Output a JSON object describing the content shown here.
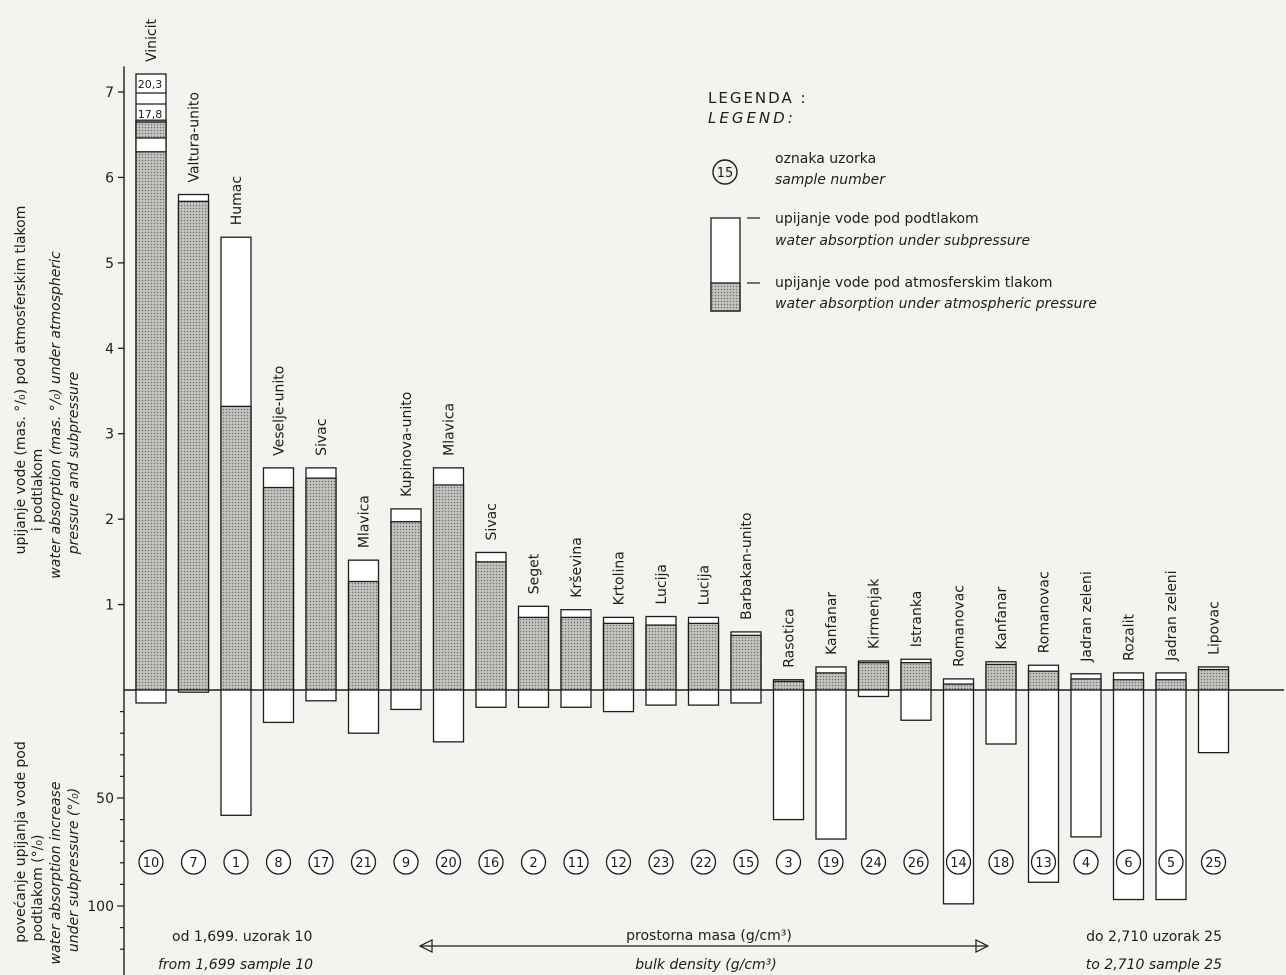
{
  "chart_data": {
    "type": "bar",
    "upper_axis": {
      "ylabel_lines": [
        "upijanje vode (mas. °/₀) pod atmosferskim tlakom",
        "i podtlakom"
      ],
      "ylabel_en_lines": [
        "water absorption (mas. °/₀) under atmospheric",
        "pressure and subpressure"
      ],
      "ylim": [
        0,
        7.3
      ],
      "ticks": [
        "1",
        "2",
        "3",
        "4",
        "5",
        "6",
        "7"
      ]
    },
    "lower_axis": {
      "ylabel_lines": [
        "povećanje upijanja vode pod",
        "podtlakom (°/₀)"
      ],
      "ylabel_en_lines": [
        "water absorption increase",
        "under subpressure (°/₀)"
      ],
      "ylim": [
        0,
        107
      ],
      "ticks": [
        "50",
        "100"
      ]
    },
    "samples": [
      {
        "name": "Vinicit",
        "number": "10",
        "atmospheric": 6.3,
        "subpressure": 6.65,
        "increase": 6
      },
      {
        "name": "Valtura-unito",
        "number": "7",
        "atmospheric": 5.72,
        "subpressure": 5.8,
        "increase": 1
      },
      {
        "name": "Humac",
        "number": "1",
        "atmospheric": 3.32,
        "subpressure": 5.3,
        "increase": 58
      },
      {
        "name": "Veselje-unito",
        "number": "8",
        "atmospheric": 2.37,
        "subpressure": 2.6,
        "increase": 15
      },
      {
        "name": "Sivac",
        "number": "17",
        "atmospheric": 2.48,
        "subpressure": 2.6,
        "increase": 5
      },
      {
        "name": "Mlavica",
        "number": "21",
        "atmospheric": 1.27,
        "subpressure": 1.52,
        "increase": 20
      },
      {
        "name": "Kupinova-unito",
        "number": "9",
        "atmospheric": 1.97,
        "subpressure": 2.12,
        "increase": 9
      },
      {
        "name": "Mlavica",
        "number": "20",
        "atmospheric": 2.4,
        "subpressure": 2.6,
        "increase": 24
      },
      {
        "name": "Sivac",
        "number": "16",
        "atmospheric": 1.5,
        "subpressure": 1.61,
        "increase": 8
      },
      {
        "name": "Seget",
        "number": "2",
        "atmospheric": 0.85,
        "subpressure": 0.98,
        "increase": 8
      },
      {
        "name": "Krševina",
        "number": "11",
        "atmospheric": 0.85,
        "subpressure": 0.94,
        "increase": 8
      },
      {
        "name": "Krtolina",
        "number": "12",
        "atmospheric": 0.78,
        "subpressure": 0.85,
        "increase": 10
      },
      {
        "name": "Lucija",
        "number": "23",
        "atmospheric": 0.76,
        "subpressure": 0.86,
        "increase": 7
      },
      {
        "name": "Lucija",
        "number": "22",
        "atmospheric": 0.78,
        "subpressure": 0.85,
        "increase": 7
      },
      {
        "name": "Barbakan-unito",
        "number": "15",
        "atmospheric": 0.64,
        "subpressure": 0.68,
        "increase": 6
      },
      {
        "name": "Rasotica",
        "number": "3",
        "atmospheric": 0.1,
        "subpressure": 0.12,
        "increase": 60
      },
      {
        "name": "Kanfanar",
        "number": "19",
        "atmospheric": 0.2,
        "subpressure": 0.27,
        "increase": 69
      },
      {
        "name": "Kirmenjak",
        "number": "24",
        "atmospheric": 0.32,
        "subpressure": 0.34,
        "increase": 3
      },
      {
        "name": "Istranka",
        "number": "26",
        "atmospheric": 0.32,
        "subpressure": 0.36,
        "increase": 14
      },
      {
        "name": "Romanovac",
        "number": "14",
        "atmospheric": 0.07,
        "subpressure": 0.13,
        "increase": 99
      },
      {
        "name": "Kanfanar",
        "number": "18",
        "atmospheric": 0.3,
        "subpressure": 0.33,
        "increase": 25
      },
      {
        "name": "Romanovac",
        "number": "13",
        "atmospheric": 0.22,
        "subpressure": 0.29,
        "increase": 89
      },
      {
        "name": "Jadran zeleni",
        "number": "4",
        "atmospheric": 0.13,
        "subpressure": 0.19,
        "increase": 68
      },
      {
        "name": "Rozalit",
        "number": "6",
        "atmospheric": 0.12,
        "subpressure": 0.2,
        "increase": 97
      },
      {
        "name": "Jadran zeleni",
        "number": "5",
        "atmospheric": 0.12,
        "subpressure": 0.2,
        "increase": 97
      },
      {
        "name": "Lipovac",
        "number": "25",
        "atmospheric": 0.24,
        "subpressure": 0.27,
        "increase": 29
      }
    ],
    "annotations": {
      "vinicit_upper": "20,3",
      "vinicit_lower": "17,8"
    },
    "legend": {
      "title": "LEGENDA :",
      "title_en": "LEGEND:",
      "sample_symbol": "15",
      "sample_label": "oznaka uzorka",
      "sample_label_en": "sample number",
      "subpressure_label": "upijanje vode pod podtlakom",
      "subpressure_label_en": "water absorption under subpressure",
      "atmospheric_label": "upijanje vode pod atmosferskim tlakom",
      "atmospheric_label_en": "water absorption under atmospheric pressure",
      "placement": "top-right"
    },
    "footer": {
      "from_label": "od  1,699. uzorak  10",
      "from_label_en": "from 1,699 sample 10",
      "axis_label": "prostorna  masa  (g/cm³)",
      "axis_label_en": "bulk density  (g/cm³)",
      "to_label": "do  2,710  uzorak  25",
      "to_label_en": "to  2,710  sample  25"
    },
    "colors": {
      "atmospheric_fill": "#b8b8b4",
      "subpressure_fill": "#ffffff",
      "ink": "#1d1d1d"
    }
  }
}
